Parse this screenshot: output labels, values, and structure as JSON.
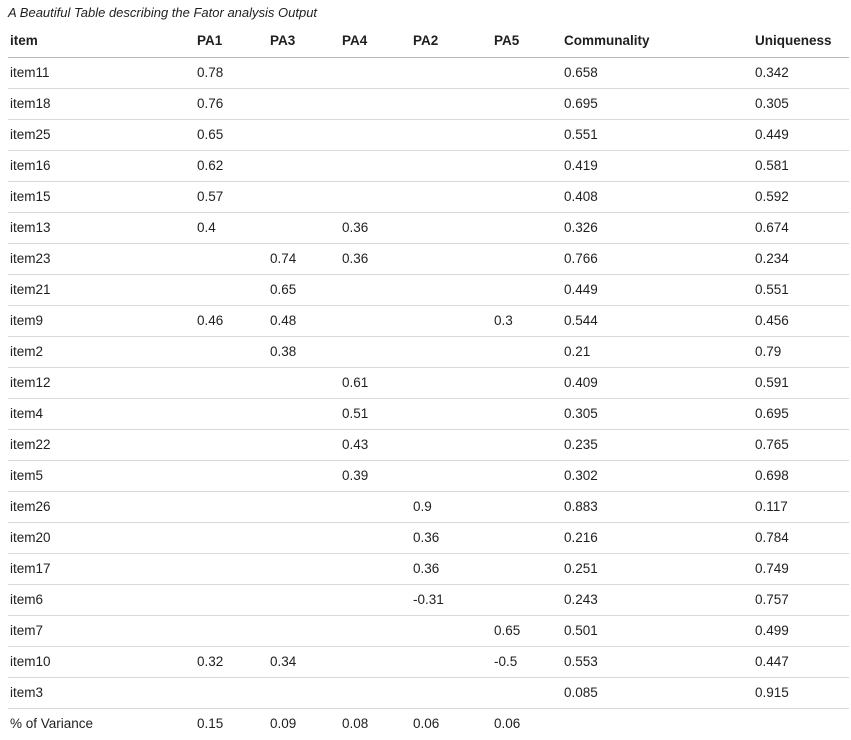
{
  "chart_data": {
    "type": "table",
    "title": "A Beautiful Table describing the Fator analysis Output",
    "columns": [
      "item",
      "PA1",
      "PA3",
      "PA4",
      "PA2",
      "PA5",
      "Communality",
      "Uniqueness"
    ],
    "rows": [
      [
        "item11",
        "0.78",
        "",
        "",
        "",
        "",
        "0.658",
        "0.342"
      ],
      [
        "item18",
        "0.76",
        "",
        "",
        "",
        "",
        "0.695",
        "0.305"
      ],
      [
        "item25",
        "0.65",
        "",
        "",
        "",
        "",
        "0.551",
        "0.449"
      ],
      [
        "item16",
        "0.62",
        "",
        "",
        "",
        "",
        "0.419",
        "0.581"
      ],
      [
        "item15",
        "0.57",
        "",
        "",
        "",
        "",
        "0.408",
        "0.592"
      ],
      [
        "item13",
        "0.4",
        "",
        "0.36",
        "",
        "",
        "0.326",
        "0.674"
      ],
      [
        "item23",
        "",
        "0.74",
        "0.36",
        "",
        "",
        "0.766",
        "0.234"
      ],
      [
        "item21",
        "",
        "0.65",
        "",
        "",
        "",
        "0.449",
        "0.551"
      ],
      [
        "item9",
        "0.46",
        "0.48",
        "",
        "",
        "0.3",
        "0.544",
        "0.456"
      ],
      [
        "item2",
        "",
        "0.38",
        "",
        "",
        "",
        "0.21",
        "0.79"
      ],
      [
        "item12",
        "",
        "",
        "0.61",
        "",
        "",
        "0.409",
        "0.591"
      ],
      [
        "item4",
        "",
        "",
        "0.51",
        "",
        "",
        "0.305",
        "0.695"
      ],
      [
        "item22",
        "",
        "",
        "0.43",
        "",
        "",
        "0.235",
        "0.765"
      ],
      [
        "item5",
        "",
        "",
        "0.39",
        "",
        "",
        "0.302",
        "0.698"
      ],
      [
        "item26",
        "",
        "",
        "",
        "0.9",
        "",
        "0.883",
        "0.117"
      ],
      [
        "item20",
        "",
        "",
        "",
        "0.36",
        "",
        "0.216",
        "0.784"
      ],
      [
        "item17",
        "",
        "",
        "",
        "0.36",
        "",
        "0.251",
        "0.749"
      ],
      [
        "item6",
        "",
        "",
        "",
        "-0.31",
        "",
        "0.243",
        "0.757"
      ],
      [
        "item7",
        "",
        "",
        "",
        "",
        "0.65",
        "0.501",
        "0.499"
      ],
      [
        "item10",
        "0.32",
        "0.34",
        "",
        "",
        "-0.5",
        "0.553",
        "0.447"
      ],
      [
        "item3",
        "",
        "",
        "",
        "",
        "",
        "0.085",
        "0.915"
      ],
      [
        "% of Variance",
        "0.15",
        "0.09",
        "0.08",
        "0.06",
        "0.06",
        "",
        ""
      ]
    ]
  }
}
